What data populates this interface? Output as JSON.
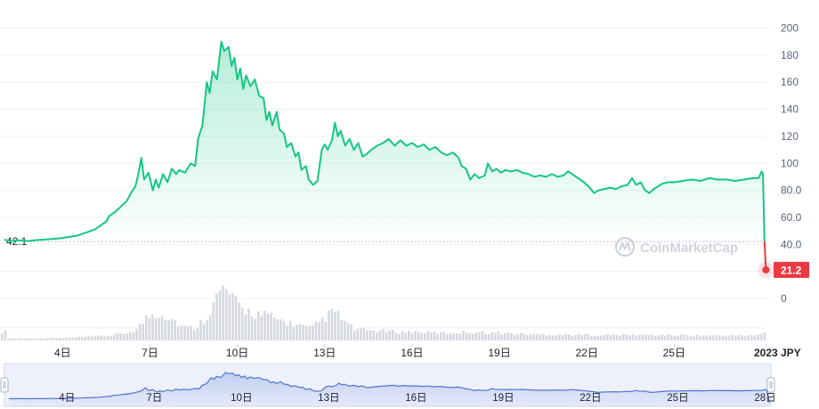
{
  "chart_data": {
    "type": "line",
    "y_ticks": [
      0,
      20,
      40,
      60,
      80,
      100,
      120,
      140,
      160,
      180,
      200
    ],
    "y_tick_labels": [
      "0",
      "",
      "40.0",
      "60.0",
      "80.0",
      "100",
      "120",
      "140",
      "160",
      "180",
      "200"
    ],
    "ylim": [
      -13,
      209
    ],
    "start_reference_label": "42.1",
    "current_price_label": "21.2",
    "currency": "JPY",
    "watermark": "CoinMarketCap",
    "x_tick_labels": [
      "4日",
      "7日",
      "10日",
      "13日",
      "16日",
      "19日",
      "22日",
      "25日",
      "2023"
    ],
    "navigator_tick_labels": [
      "4日",
      "7日",
      "10日",
      "13日",
      "16日",
      "19日",
      "22日",
      "25日",
      "28日"
    ],
    "price_series": [
      {
        "x": 2.0,
        "y": 43.5
      },
      {
        "x": 2.2,
        "y": 42.5
      },
      {
        "x": 2.5,
        "y": 43.0
      },
      {
        "x": 2.8,
        "y": 42.5
      },
      {
        "x": 3.0,
        "y": 43.0
      },
      {
        "x": 3.3,
        "y": 43.5
      },
      {
        "x": 3.6,
        "y": 44.0
      },
      {
        "x": 3.9,
        "y": 44.5
      },
      {
        "x": 4.2,
        "y": 45.5
      },
      {
        "x": 4.5,
        "y": 46.5
      },
      {
        "x": 4.7,
        "y": 48.0
      },
      {
        "x": 4.9,
        "y": 49.5
      },
      {
        "x": 5.1,
        "y": 51.0
      },
      {
        "x": 5.3,
        "y": 54.0
      },
      {
        "x": 5.5,
        "y": 57.0
      },
      {
        "x": 5.6,
        "y": 61.0
      },
      {
        "x": 5.8,
        "y": 64.0
      },
      {
        "x": 6.0,
        "y": 68.0
      },
      {
        "x": 6.2,
        "y": 72.0
      },
      {
        "x": 6.35,
        "y": 78.0
      },
      {
        "x": 6.5,
        "y": 83.0
      },
      {
        "x": 6.6,
        "y": 92.0
      },
      {
        "x": 6.7,
        "y": 104.0
      },
      {
        "x": 6.8,
        "y": 88.0
      },
      {
        "x": 6.95,
        "y": 93.0
      },
      {
        "x": 7.1,
        "y": 80.0
      },
      {
        "x": 7.2,
        "y": 88.0
      },
      {
        "x": 7.3,
        "y": 82.0
      },
      {
        "x": 7.45,
        "y": 92.0
      },
      {
        "x": 7.6,
        "y": 86.0
      },
      {
        "x": 7.75,
        "y": 96.0
      },
      {
        "x": 7.9,
        "y": 92.0
      },
      {
        "x": 8.0,
        "y": 95.0
      },
      {
        "x": 8.2,
        "y": 93.0
      },
      {
        "x": 8.4,
        "y": 100.0
      },
      {
        "x": 8.55,
        "y": 98.0
      },
      {
        "x": 8.65,
        "y": 118.0
      },
      {
        "x": 8.8,
        "y": 128.0
      },
      {
        "x": 8.95,
        "y": 160.0
      },
      {
        "x": 9.05,
        "y": 152.0
      },
      {
        "x": 9.15,
        "y": 168.0
      },
      {
        "x": 9.3,
        "y": 162.0
      },
      {
        "x": 9.45,
        "y": 190.0
      },
      {
        "x": 9.55,
        "y": 183.0
      },
      {
        "x": 9.7,
        "y": 186.0
      },
      {
        "x": 9.8,
        "y": 172.0
      },
      {
        "x": 9.9,
        "y": 178.0
      },
      {
        "x": 10.0,
        "y": 162.0
      },
      {
        "x": 10.1,
        "y": 170.0
      },
      {
        "x": 10.2,
        "y": 155.0
      },
      {
        "x": 10.3,
        "y": 165.0
      },
      {
        "x": 10.45,
        "y": 157.0
      },
      {
        "x": 10.6,
        "y": 162.0
      },
      {
        "x": 10.75,
        "y": 150.0
      },
      {
        "x": 10.9,
        "y": 148.0
      },
      {
        "x": 11.0,
        "y": 132.0
      },
      {
        "x": 11.1,
        "y": 138.0
      },
      {
        "x": 11.2,
        "y": 128.0
      },
      {
        "x": 11.35,
        "y": 138.0
      },
      {
        "x": 11.45,
        "y": 125.0
      },
      {
        "x": 11.6,
        "y": 122.0
      },
      {
        "x": 11.7,
        "y": 112.0
      },
      {
        "x": 11.85,
        "y": 115.0
      },
      {
        "x": 12.0,
        "y": 105.0
      },
      {
        "x": 12.1,
        "y": 108.0
      },
      {
        "x": 12.2,
        "y": 95.0
      },
      {
        "x": 12.35,
        "y": 98.0
      },
      {
        "x": 12.45,
        "y": 88.0
      },
      {
        "x": 12.6,
        "y": 84.0
      },
      {
        "x": 12.75,
        "y": 87.0
      },
      {
        "x": 12.9,
        "y": 110.0
      },
      {
        "x": 13.0,
        "y": 114.0
      },
      {
        "x": 13.1,
        "y": 110.0
      },
      {
        "x": 13.25,
        "y": 117.0
      },
      {
        "x": 13.35,
        "y": 130.0
      },
      {
        "x": 13.45,
        "y": 120.0
      },
      {
        "x": 13.55,
        "y": 124.0
      },
      {
        "x": 13.7,
        "y": 113.0
      },
      {
        "x": 13.85,
        "y": 118.0
      },
      {
        "x": 14.0,
        "y": 110.0
      },
      {
        "x": 14.15,
        "y": 115.0
      },
      {
        "x": 14.3,
        "y": 105.0
      },
      {
        "x": 14.45,
        "y": 107.0
      },
      {
        "x": 14.6,
        "y": 110.0
      },
      {
        "x": 14.8,
        "y": 113.0
      },
      {
        "x": 15.0,
        "y": 115.0
      },
      {
        "x": 15.2,
        "y": 118.0
      },
      {
        "x": 15.4,
        "y": 113.0
      },
      {
        "x": 15.6,
        "y": 117.0
      },
      {
        "x": 15.8,
        "y": 113.0
      },
      {
        "x": 16.0,
        "y": 115.0
      },
      {
        "x": 16.2,
        "y": 112.0
      },
      {
        "x": 16.4,
        "y": 114.0
      },
      {
        "x": 16.6,
        "y": 110.0
      },
      {
        "x": 16.8,
        "y": 112.0
      },
      {
        "x": 17.0,
        "y": 108.0
      },
      {
        "x": 17.2,
        "y": 106.0
      },
      {
        "x": 17.4,
        "y": 108.0
      },
      {
        "x": 17.6,
        "y": 104.0
      },
      {
        "x": 17.7,
        "y": 98.0
      },
      {
        "x": 17.85,
        "y": 96.0
      },
      {
        "x": 18.0,
        "y": 88.0
      },
      {
        "x": 18.15,
        "y": 92.0
      },
      {
        "x": 18.3,
        "y": 89.0
      },
      {
        "x": 18.5,
        "y": 91.0
      },
      {
        "x": 18.6,
        "y": 100.0
      },
      {
        "x": 18.75,
        "y": 94.0
      },
      {
        "x": 18.9,
        "y": 96.0
      },
      {
        "x": 19.05,
        "y": 93.0
      },
      {
        "x": 19.2,
        "y": 95.0
      },
      {
        "x": 19.4,
        "y": 94.0
      },
      {
        "x": 19.6,
        "y": 95.0
      },
      {
        "x": 19.8,
        "y": 93.0
      },
      {
        "x": 20.0,
        "y": 92.0
      },
      {
        "x": 20.2,
        "y": 90.0
      },
      {
        "x": 20.4,
        "y": 91.0
      },
      {
        "x": 20.6,
        "y": 90.0
      },
      {
        "x": 20.8,
        "y": 92.0
      },
      {
        "x": 21.0,
        "y": 90.0
      },
      {
        "x": 21.2,
        "y": 91.0
      },
      {
        "x": 21.35,
        "y": 94.0
      },
      {
        "x": 21.5,
        "y": 92.0
      },
      {
        "x": 21.7,
        "y": 89.0
      },
      {
        "x": 21.9,
        "y": 86.0
      },
      {
        "x": 22.1,
        "y": 82.0
      },
      {
        "x": 22.25,
        "y": 78.0
      },
      {
        "x": 22.4,
        "y": 80.0
      },
      {
        "x": 22.6,
        "y": 81.0
      },
      {
        "x": 22.8,
        "y": 82.0
      },
      {
        "x": 23.0,
        "y": 81.0
      },
      {
        "x": 23.2,
        "y": 83.0
      },
      {
        "x": 23.4,
        "y": 84.0
      },
      {
        "x": 23.55,
        "y": 89.0
      },
      {
        "x": 23.7,
        "y": 84.0
      },
      {
        "x": 23.85,
        "y": 86.0
      },
      {
        "x": 24.0,
        "y": 80.0
      },
      {
        "x": 24.15,
        "y": 78.0
      },
      {
        "x": 24.3,
        "y": 81.0
      },
      {
        "x": 24.45,
        "y": 83.0
      },
      {
        "x": 24.6,
        "y": 85.0
      },
      {
        "x": 24.8,
        "y": 86.0
      },
      {
        "x": 25.0,
        "y": 86.0
      },
      {
        "x": 25.3,
        "y": 87.0
      },
      {
        "x": 25.6,
        "y": 88.0
      },
      {
        "x": 25.9,
        "y": 87.0
      },
      {
        "x": 26.2,
        "y": 89.0
      },
      {
        "x": 26.5,
        "y": 88.0
      },
      {
        "x": 26.8,
        "y": 88.0
      },
      {
        "x": 27.1,
        "y": 87.0
      },
      {
        "x": 27.4,
        "y": 88.0
      },
      {
        "x": 27.7,
        "y": 89.0
      },
      {
        "x": 27.9,
        "y": 89.0
      },
      {
        "x": 28.0,
        "y": 94.0
      },
      {
        "x": 28.05,
        "y": 92.0
      },
      {
        "x": 28.1,
        "y": 58.0
      },
      {
        "x": 28.15,
        "y": 21.2
      }
    ],
    "volume_series": [
      {
        "x": 2.0,
        "v": 3
      },
      {
        "x": 4.0,
        "v": 4
      },
      {
        "x": 5.0,
        "v": 6
      },
      {
        "x": 6.0,
        "v": 10
      },
      {
        "x": 6.5,
        "v": 18
      },
      {
        "x": 6.9,
        "v": 40
      },
      {
        "x": 7.3,
        "v": 45
      },
      {
        "x": 7.7,
        "v": 36
      },
      {
        "x": 8.1,
        "v": 22
      },
      {
        "x": 8.5,
        "v": 20
      },
      {
        "x": 8.9,
        "v": 40
      },
      {
        "x": 9.2,
        "v": 65
      },
      {
        "x": 9.45,
        "v": 85
      },
      {
        "x": 9.7,
        "v": 75
      },
      {
        "x": 10.0,
        "v": 55
      },
      {
        "x": 10.5,
        "v": 45
      },
      {
        "x": 11.0,
        "v": 40
      },
      {
        "x": 11.5,
        "v": 32
      },
      {
        "x": 12.0,
        "v": 25
      },
      {
        "x": 12.5,
        "v": 20
      },
      {
        "x": 13.0,
        "v": 38
      },
      {
        "x": 13.3,
        "v": 48
      },
      {
        "x": 13.7,
        "v": 28
      },
      {
        "x": 14.0,
        "v": 18
      },
      {
        "x": 15.0,
        "v": 15
      },
      {
        "x": 16.0,
        "v": 14
      },
      {
        "x": 17.0,
        "v": 12
      },
      {
        "x": 18.0,
        "v": 14
      },
      {
        "x": 19.0,
        "v": 12
      },
      {
        "x": 20.0,
        "v": 10
      },
      {
        "x": 22.0,
        "v": 9
      },
      {
        "x": 24.0,
        "v": 9
      },
      {
        "x": 26.0,
        "v": 8
      },
      {
        "x": 27.8,
        "v": 8
      },
      {
        "x": 28.15,
        "v": 14
      }
    ],
    "x_tick_positions": [
      4,
      7,
      10,
      13,
      16,
      19,
      22,
      25,
      28.15
    ],
    "navigator_tick_positions": [
      4,
      7,
      10,
      13,
      16,
      19,
      22,
      25,
      28
    ],
    "colors": {
      "line": "#16c784",
      "drop": "#ea3943",
      "label_bg": "#ea3943",
      "volume": "#d6d9e0",
      "navigator_bg": "#eef1fc",
      "navigator_line": "#4e74d1",
      "grid": "#eff2f5",
      "reference": "#a6b0c3"
    }
  }
}
